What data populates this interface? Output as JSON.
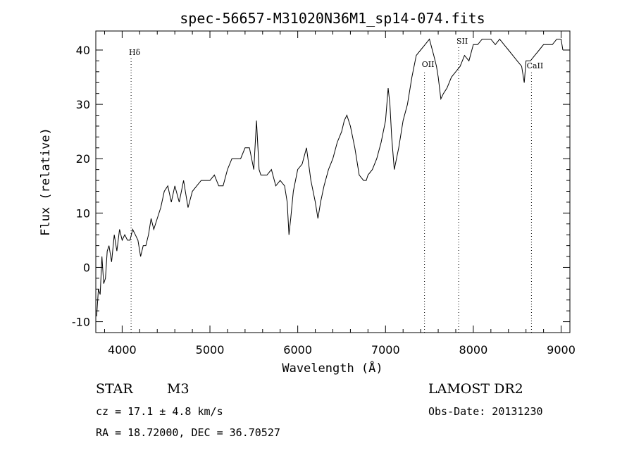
{
  "chart_data": {
    "type": "line",
    "title": "spec-56657-M31020N36M1_sp14-074.fits",
    "xlabel": "Wavelength (Å)",
    "ylabel": "Flux (relative)",
    "xlim": [
      3700,
      9100
    ],
    "ylim": [
      -12,
      43.5
    ],
    "xticks": [
      4000,
      5000,
      6000,
      7000,
      8000,
      9000
    ],
    "yticks": [
      -10,
      0,
      10,
      20,
      30,
      40
    ],
    "grid": false,
    "lines": [
      {
        "label": "Hδ",
        "x": 4102
      },
      {
        "label": "OII",
        "x": 7444
      },
      {
        "label": "SII",
        "x": 7833
      },
      {
        "label": "CaII",
        "x": 8662
      }
    ],
    "series": [
      {
        "x": [
          3710,
          3730,
          3750,
          3770,
          3790,
          3810,
          3830,
          3850,
          3880,
          3910,
          3940,
          3970,
          4000,
          4030,
          4060,
          4090,
          4120,
          4150,
          4180,
          4210,
          4240,
          4270,
          4300,
          4330,
          4360,
          4400,
          4440,
          4480,
          4520,
          4560,
          4600,
          4650,
          4700,
          4750,
          4800,
          4850,
          4900,
          4950,
          5000,
          5050,
          5100,
          5150,
          5200,
          5250,
          5300,
          5350,
          5400,
          5450,
          5500,
          5530,
          5560,
          5580,
          5600,
          5650,
          5700,
          5750,
          5800,
          5850,
          5880,
          5900,
          5920,
          5950,
          6000,
          6050,
          6100,
          6150,
          6200,
          6230,
          6260,
          6300,
          6350,
          6400,
          6450,
          6500,
          6530,
          6560,
          6600,
          6650,
          6700,
          6750,
          6780,
          6800,
          6850,
          6900,
          6950,
          7000,
          7030,
          7050,
          7070,
          7100,
          7150,
          7200,
          7250,
          7300,
          7350,
          7400,
          7450,
          7500,
          7550,
          7580,
          7600,
          7630,
          7660,
          7700,
          7750,
          7800,
          7850,
          7900,
          7950,
          8000,
          8050,
          8100,
          8150,
          8200,
          8250,
          8300,
          8350,
          8400,
          8450,
          8500,
          8550,
          8580,
          8600,
          8650,
          8700,
          8750,
          8800,
          8850,
          8900,
          8950,
          9000,
          9020
        ],
        "y": [
          -9,
          -4,
          -5,
          2,
          -3,
          -2,
          3,
          4,
          1,
          6,
          3,
          7,
          5,
          6,
          5,
          5,
          7,
          6,
          5,
          2,
          4,
          4,
          6,
          9,
          7,
          9,
          11,
          14,
          15,
          12,
          15,
          12,
          16,
          11,
          14,
          15,
          16,
          16,
          16,
          17,
          15,
          15,
          18,
          20,
          20,
          20,
          22,
          22,
          18,
          27,
          18,
          17,
          17,
          17,
          18,
          15,
          16,
          15,
          12,
          6,
          9,
          14,
          18,
          19,
          22,
          16,
          12,
          9,
          12,
          15,
          18,
          20,
          23,
          25,
          27,
          28,
          26,
          22,
          17,
          16,
          16,
          17,
          18,
          20,
          23,
          27,
          33,
          30,
          24,
          18,
          22,
          27,
          30,
          35,
          39,
          40,
          41,
          42,
          39,
          37,
          35,
          31,
          32,
          33,
          35,
          36,
          37,
          39,
          38,
          41,
          41,
          42,
          42,
          42,
          41,
          42,
          41,
          40,
          39,
          38,
          37,
          34,
          38,
          38,
          39,
          40,
          41,
          41,
          41,
          42,
          42,
          40
        ]
      }
    ]
  },
  "info": {
    "class": "STAR",
    "subclass": "M3",
    "survey": "LAMOST DR2",
    "cz": "cz = 17.1 ± 4.8 km/s",
    "obs_date": "Obs-Date: 20131230",
    "radec": "RA =  18.72000, DEC =  36.70527"
  }
}
